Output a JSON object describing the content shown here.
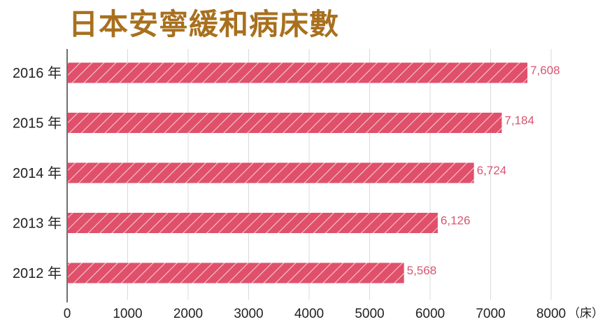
{
  "chart_data": {
    "type": "bar",
    "orientation": "horizontal",
    "title": "日本安寧緩和病床數",
    "categories": [
      "2016 年",
      "2015 年",
      "2014 年",
      "2013 年",
      "2012 年"
    ],
    "values": [
      7608,
      7184,
      6724,
      6126,
      5568
    ],
    "value_labels": [
      "7,608",
      "7,184",
      "6,724",
      "6,126",
      "5,568"
    ],
    "x_ticks": [
      "0",
      "1000",
      "2000",
      "3000",
      "4000",
      "5000",
      "6000",
      "7000",
      "8000"
    ],
    "x_unit": "（床）",
    "xlim": [
      0,
      8000
    ],
    "grid": "vertical",
    "legend": "none"
  },
  "colors": {
    "title": "#a8701e",
    "bar": "#e0506a",
    "bar_hatch": "#f6c9d2",
    "value_label": "#d85572",
    "grid": "#d9d9d9",
    "axis": "#222222"
  }
}
